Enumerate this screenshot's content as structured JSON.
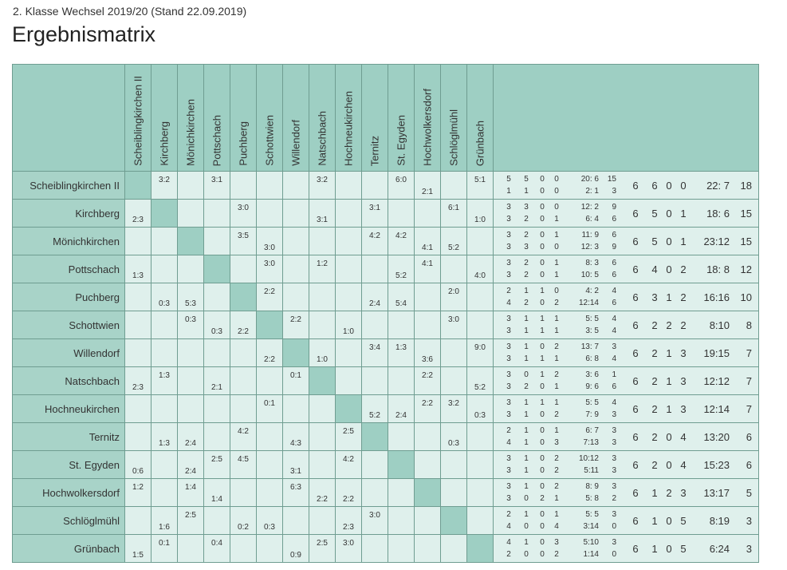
{
  "header": {
    "subtitle": "2. Klasse Wechsel 2019/20 (Stand 22.09.2019)",
    "title": "Ergebnismatrix"
  },
  "colors": {
    "header_bg": "#9ecfc3",
    "cell_bg": "#dff0ec",
    "diag_bg": "#9ecfc3",
    "border": "#6f9d91"
  },
  "teams": [
    "Scheiblingkirchen II",
    "Kirchberg",
    "Mönichkirchen",
    "Pottschach",
    "Puchberg",
    "Schottwien",
    "Willendorf",
    "Natschbach",
    "Hochneukirchen",
    "Ternitz",
    "St. Egyden",
    "Hochwolkersdorf",
    "Schlöglmühl",
    "Grünbach"
  ],
  "rows": [
    {
      "team": "Scheiblingkirchen II",
      "cells": [
        [
          "",
          ""
        ],
        [
          "3:2",
          ""
        ],
        [
          "",
          ""
        ],
        [
          "3:1",
          ""
        ],
        [
          "",
          ""
        ],
        [
          "",
          ""
        ],
        [
          "",
          ""
        ],
        [
          "3:2",
          ""
        ],
        [
          "",
          ""
        ],
        [
          "",
          ""
        ],
        [
          "6:0",
          ""
        ],
        [
          "",
          "2:1"
        ],
        [
          "",
          ""
        ],
        [
          "5:1",
          ""
        ]
      ],
      "home": [
        "5",
        "5",
        "0",
        "0",
        "20: 6",
        "15"
      ],
      "away": [
        "1",
        "1",
        "0",
        "0",
        "2: 1",
        "3"
      ],
      "total": [
        "6",
        "6",
        "0",
        "0",
        "22: 7",
        "18"
      ]
    },
    {
      "team": "Kirchberg",
      "cells": [
        [
          "",
          "2:3"
        ],
        [
          "",
          ""
        ],
        [
          "",
          ""
        ],
        [
          "",
          ""
        ],
        [
          "3:0",
          ""
        ],
        [
          "",
          ""
        ],
        [
          "",
          ""
        ],
        [
          "",
          "3:1"
        ],
        [
          "",
          ""
        ],
        [
          "3:1",
          ""
        ],
        [
          "",
          ""
        ],
        [
          "",
          ""
        ],
        [
          "6:1",
          ""
        ],
        [
          "",
          "1:0"
        ]
      ],
      "home": [
        "3",
        "3",
        "0",
        "0",
        "12: 2",
        "9"
      ],
      "away": [
        "3",
        "2",
        "0",
        "1",
        "6: 4",
        "6"
      ],
      "total": [
        "6",
        "5",
        "0",
        "1",
        "18: 6",
        "15"
      ]
    },
    {
      "team": "Mönichkirchen",
      "cells": [
        [
          "",
          ""
        ],
        [
          "",
          ""
        ],
        [
          "",
          ""
        ],
        [
          "",
          ""
        ],
        [
          "3:5",
          ""
        ],
        [
          "",
          "3:0"
        ],
        [
          "",
          ""
        ],
        [
          "",
          ""
        ],
        [
          "",
          ""
        ],
        [
          "4:2",
          ""
        ],
        [
          "4:2",
          ""
        ],
        [
          "",
          "4:1"
        ],
        [
          "",
          "5:2"
        ],
        [
          "",
          ""
        ]
      ],
      "home": [
        "3",
        "2",
        "0",
        "1",
        "11: 9",
        "6"
      ],
      "away": [
        "3",
        "3",
        "0",
        "0",
        "12: 3",
        "9"
      ],
      "total": [
        "6",
        "5",
        "0",
        "1",
        "23:12",
        "15"
      ]
    },
    {
      "team": "Pottschach",
      "cells": [
        [
          "",
          "1:3"
        ],
        [
          "",
          ""
        ],
        [
          "",
          ""
        ],
        [
          "",
          ""
        ],
        [
          "",
          ""
        ],
        [
          "3:0",
          ""
        ],
        [
          "",
          ""
        ],
        [
          "1:2",
          ""
        ],
        [
          "",
          ""
        ],
        [
          "",
          ""
        ],
        [
          "",
          "5:2"
        ],
        [
          "4:1",
          ""
        ],
        [
          "",
          ""
        ],
        [
          "",
          "4:0"
        ]
      ],
      "home": [
        "3",
        "2",
        "0",
        "1",
        "8: 3",
        "6"
      ],
      "away": [
        "3",
        "2",
        "0",
        "1",
        "10: 5",
        "6"
      ],
      "total": [
        "6",
        "4",
        "0",
        "2",
        "18: 8",
        "12"
      ]
    },
    {
      "team": "Puchberg",
      "cells": [
        [
          "",
          ""
        ],
        [
          "",
          "0:3"
        ],
        [
          "",
          "5:3"
        ],
        [
          "",
          ""
        ],
        [
          "",
          ""
        ],
        [
          "2:2",
          ""
        ],
        [
          "",
          ""
        ],
        [
          "",
          ""
        ],
        [
          "",
          ""
        ],
        [
          "",
          "2:4"
        ],
        [
          "",
          "5:4"
        ],
        [
          "",
          ""
        ],
        [
          "2:0",
          ""
        ],
        [
          "",
          ""
        ]
      ],
      "home": [
        "2",
        "1",
        "1",
        "0",
        "4: 2",
        "4"
      ],
      "away": [
        "4",
        "2",
        "0",
        "2",
        "12:14",
        "6"
      ],
      "total": [
        "6",
        "3",
        "1",
        "2",
        "16:16",
        "10"
      ]
    },
    {
      "team": "Schottwien",
      "cells": [
        [
          "",
          ""
        ],
        [
          "",
          ""
        ],
        [
          "0:3",
          ""
        ],
        [
          "",
          "0:3"
        ],
        [
          "",
          "2:2"
        ],
        [
          "",
          ""
        ],
        [
          "2:2",
          ""
        ],
        [
          "",
          ""
        ],
        [
          "",
          "1:0"
        ],
        [
          "",
          ""
        ],
        [
          "",
          ""
        ],
        [
          "",
          ""
        ],
        [
          "3:0",
          ""
        ],
        [
          "",
          ""
        ]
      ],
      "home": [
        "3",
        "1",
        "1",
        "1",
        "5: 5",
        "4"
      ],
      "away": [
        "3",
        "1",
        "1",
        "1",
        "3: 5",
        "4"
      ],
      "total": [
        "6",
        "2",
        "2",
        "2",
        "8:10",
        "8"
      ]
    },
    {
      "team": "Willendorf",
      "cells": [
        [
          "",
          ""
        ],
        [
          "",
          ""
        ],
        [
          "",
          ""
        ],
        [
          "",
          ""
        ],
        [
          "",
          ""
        ],
        [
          "",
          "2:2"
        ],
        [
          "",
          ""
        ],
        [
          "",
          "1:0"
        ],
        [
          "",
          ""
        ],
        [
          "3:4",
          ""
        ],
        [
          "1:3",
          ""
        ],
        [
          "",
          "3:6"
        ],
        [
          "",
          ""
        ],
        [
          "9:0",
          ""
        ]
      ],
      "home": [
        "3",
        "1",
        "0",
        "2",
        "13: 7",
        "3"
      ],
      "away": [
        "3",
        "1",
        "1",
        "1",
        "6: 8",
        "4"
      ],
      "total": [
        "6",
        "2",
        "1",
        "3",
        "19:15",
        "7"
      ]
    },
    {
      "team": "Natschbach",
      "cells": [
        [
          "",
          "2:3"
        ],
        [
          "1:3",
          ""
        ],
        [
          "",
          ""
        ],
        [
          "",
          "2:1"
        ],
        [
          "",
          ""
        ],
        [
          "",
          ""
        ],
        [
          "0:1",
          ""
        ],
        [
          "",
          ""
        ],
        [
          "",
          ""
        ],
        [
          "",
          ""
        ],
        [
          "",
          ""
        ],
        [
          "2:2",
          ""
        ],
        [
          "",
          ""
        ],
        [
          "",
          "5:2"
        ]
      ],
      "home": [
        "3",
        "0",
        "1",
        "2",
        "3: 6",
        "1"
      ],
      "away": [
        "3",
        "2",
        "0",
        "1",
        "9: 6",
        "6"
      ],
      "total": [
        "6",
        "2",
        "1",
        "3",
        "12:12",
        "7"
      ]
    },
    {
      "team": "Hochneukirchen",
      "cells": [
        [
          "",
          ""
        ],
        [
          "",
          ""
        ],
        [
          "",
          ""
        ],
        [
          "",
          ""
        ],
        [
          "",
          ""
        ],
        [
          "0:1",
          ""
        ],
        [
          "",
          ""
        ],
        [
          "",
          ""
        ],
        [
          "",
          ""
        ],
        [
          "",
          "5:2"
        ],
        [
          "",
          "2:4"
        ],
        [
          "2:2",
          ""
        ],
        [
          "3:2",
          ""
        ],
        [
          "",
          "0:3"
        ]
      ],
      "home": [
        "3",
        "1",
        "1",
        "1",
        "5: 5",
        "4"
      ],
      "away": [
        "3",
        "1",
        "0",
        "2",
        "7: 9",
        "3"
      ],
      "total": [
        "6",
        "2",
        "1",
        "3",
        "12:14",
        "7"
      ]
    },
    {
      "team": "Ternitz",
      "cells": [
        [
          "",
          ""
        ],
        [
          "",
          "1:3"
        ],
        [
          "",
          "2:4"
        ],
        [
          "",
          ""
        ],
        [
          "4:2",
          ""
        ],
        [
          "",
          ""
        ],
        [
          "",
          "4:3"
        ],
        [
          "",
          ""
        ],
        [
          "2:5",
          ""
        ],
        [
          "",
          ""
        ],
        [
          "",
          ""
        ],
        [
          "",
          ""
        ],
        [
          "",
          "0:3"
        ],
        [
          "",
          ""
        ]
      ],
      "home": [
        "2",
        "1",
        "0",
        "1",
        "6: 7",
        "3"
      ],
      "away": [
        "4",
        "1",
        "0",
        "3",
        "7:13",
        "3"
      ],
      "total": [
        "6",
        "2",
        "0",
        "4",
        "13:20",
        "6"
      ]
    },
    {
      "team": "St. Egyden",
      "cells": [
        [
          "",
          "0:6"
        ],
        [
          "",
          ""
        ],
        [
          "",
          "2:4"
        ],
        [
          "2:5",
          ""
        ],
        [
          "4:5",
          ""
        ],
        [
          "",
          ""
        ],
        [
          "",
          "3:1"
        ],
        [
          "",
          ""
        ],
        [
          "4:2",
          ""
        ],
        [
          "",
          ""
        ],
        [
          "",
          ""
        ],
        [
          "",
          ""
        ],
        [
          "",
          ""
        ],
        [
          "",
          ""
        ]
      ],
      "home": [
        "3",
        "1",
        "0",
        "2",
        "10:12",
        "3"
      ],
      "away": [
        "3",
        "1",
        "0",
        "2",
        "5:11",
        "3"
      ],
      "total": [
        "6",
        "2",
        "0",
        "4",
        "15:23",
        "6"
      ]
    },
    {
      "team": "Hochwolkersdorf",
      "cells": [
        [
          "1:2",
          ""
        ],
        [
          "",
          ""
        ],
        [
          "1:4",
          ""
        ],
        [
          "",
          "1:4"
        ],
        [
          "",
          ""
        ],
        [
          "",
          ""
        ],
        [
          "6:3",
          ""
        ],
        [
          "",
          "2:2"
        ],
        [
          "",
          "2:2"
        ],
        [
          "",
          ""
        ],
        [
          "",
          ""
        ],
        [
          "",
          ""
        ],
        [
          "",
          ""
        ],
        [
          "",
          ""
        ]
      ],
      "home": [
        "3",
        "1",
        "0",
        "2",
        "8: 9",
        "3"
      ],
      "away": [
        "3",
        "0",
        "2",
        "1",
        "5: 8",
        "2"
      ],
      "total": [
        "6",
        "1",
        "2",
        "3",
        "13:17",
        "5"
      ]
    },
    {
      "team": "Schlöglmühl",
      "cells": [
        [
          "",
          ""
        ],
        [
          "",
          "1:6"
        ],
        [
          "2:5",
          ""
        ],
        [
          "",
          ""
        ],
        [
          "",
          "0:2"
        ],
        [
          "",
          "0:3"
        ],
        [
          "",
          ""
        ],
        [
          "",
          ""
        ],
        [
          "",
          "2:3"
        ],
        [
          "3:0",
          ""
        ],
        [
          "",
          ""
        ],
        [
          "",
          ""
        ],
        [
          "",
          ""
        ],
        [
          "",
          ""
        ]
      ],
      "home": [
        "2",
        "1",
        "0",
        "1",
        "5: 5",
        "3"
      ],
      "away": [
        "4",
        "0",
        "0",
        "4",
        "3:14",
        "0"
      ],
      "total": [
        "6",
        "1",
        "0",
        "5",
        "8:19",
        "3"
      ]
    },
    {
      "team": "Grünbach",
      "cells": [
        [
          "",
          "1:5"
        ],
        [
          "0:1",
          ""
        ],
        [
          "",
          ""
        ],
        [
          "0:4",
          ""
        ],
        [
          "",
          ""
        ],
        [
          "",
          ""
        ],
        [
          "",
          "0:9"
        ],
        [
          "2:5",
          ""
        ],
        [
          "3:0",
          ""
        ],
        [
          "",
          ""
        ],
        [
          "",
          ""
        ],
        [
          "",
          ""
        ],
        [
          "",
          ""
        ],
        [
          "",
          ""
        ]
      ],
      "home": [
        "4",
        "1",
        "0",
        "3",
        "5:10",
        "3"
      ],
      "away": [
        "2",
        "0",
        "0",
        "2",
        "1:14",
        "0"
      ],
      "total": [
        "6",
        "1",
        "0",
        "5",
        "6:24",
        "3"
      ]
    }
  ]
}
